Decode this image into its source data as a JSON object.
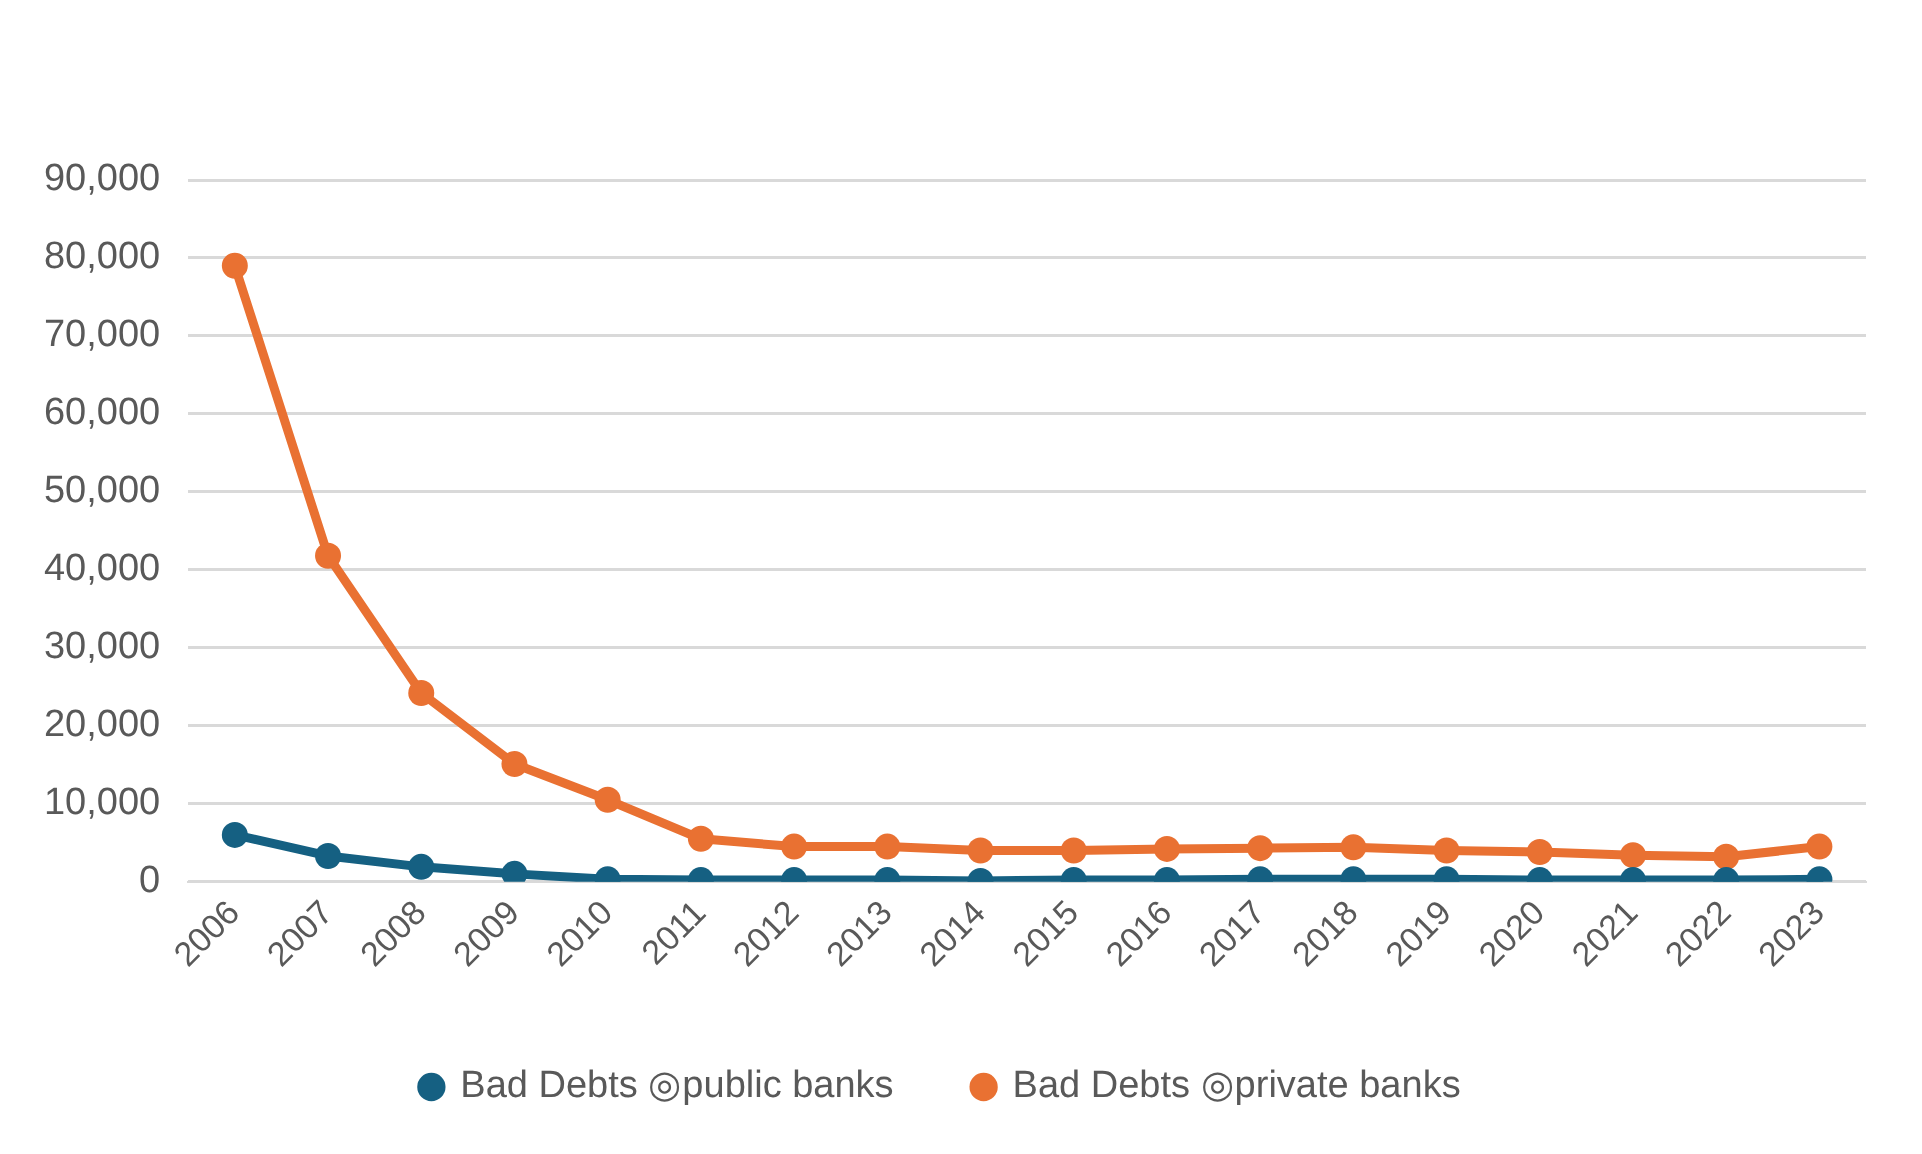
{
  "chart_data": {
    "type": "line",
    "categories": [
      "2006",
      "2007",
      "2008",
      "2009",
      "2010",
      "2011",
      "2012",
      "2013",
      "2014",
      "2015",
      "2016",
      "2017",
      "2018",
      "2019",
      "2020",
      "2021",
      "2022",
      "2023"
    ],
    "series": [
      {
        "name": "Bad Debts ◎public banks",
        "color": "#156082",
        "values": [
          6000,
          3300,
          1900,
          1000,
          300,
          200,
          200,
          200,
          100,
          200,
          200,
          300,
          300,
          300,
          200,
          200,
          200,
          300
        ]
      },
      {
        "name": "Bad Debts ◎private banks",
        "color": "#e97132",
        "values": [
          79000,
          41800,
          24200,
          15100,
          10500,
          5500,
          4500,
          4500,
          4000,
          4000,
          4200,
          4300,
          4400,
          4000,
          3800,
          3400,
          3200,
          4500
        ]
      }
    ],
    "ylim": [
      0,
      90000
    ],
    "yticks": [
      {
        "value": 0,
        "label": "0"
      },
      {
        "value": 10000,
        "label": "10,000"
      },
      {
        "value": 20000,
        "label": "20,000"
      },
      {
        "value": 30000,
        "label": "30,000"
      },
      {
        "value": 40000,
        "label": "40,000"
      },
      {
        "value": 50000,
        "label": "50,000"
      },
      {
        "value": 60000,
        "label": "60,000"
      },
      {
        "value": 70000,
        "label": "70,000"
      },
      {
        "value": 80000,
        "label": "80,000"
      },
      {
        "value": 90000,
        "label": "90,000"
      }
    ],
    "grid": "y",
    "legend": "bottom",
    "marker": "circle",
    "line_style": "solid"
  }
}
